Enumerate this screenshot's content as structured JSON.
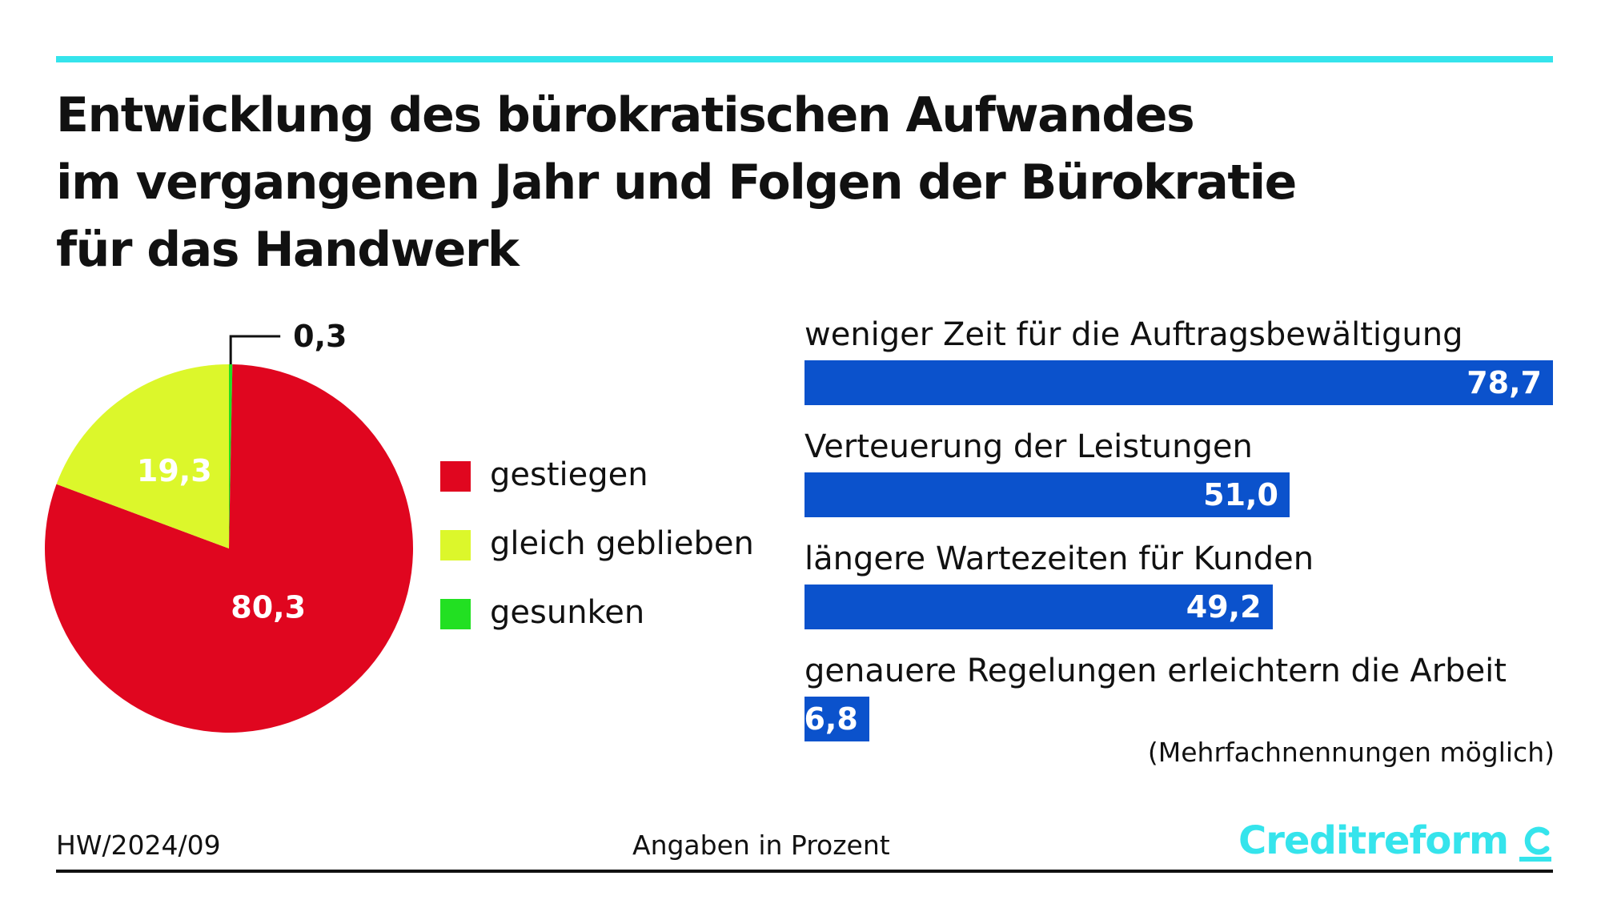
{
  "header": {
    "title_lines": [
      "Entwicklung des bürokratischen Aufwandes",
      "im vergangenen Jahr und Folgen der Bürokratie",
      "für das Handwerk"
    ]
  },
  "colors": {
    "accent_rule": "#35e4ec",
    "gestiegen": "#e0061f",
    "gleich_geblieben": "#dcf72b",
    "gesunken": "#22e022",
    "bars": "#0b52cc",
    "brand": "#35e4ec"
  },
  "chart_data": [
    {
      "type": "pie",
      "slices": [
        {
          "label": "gestiegen",
          "value": 80.3,
          "display": "80,3"
        },
        {
          "label": "gleich geblieben",
          "value": 19.3,
          "display": "19,3"
        },
        {
          "label": "gesunken",
          "value": 0.3,
          "display": "0,3"
        }
      ],
      "legend": [
        "gestiegen",
        "gleich geblieben",
        "gesunken"
      ],
      "legend_position": "right",
      "unit": "Prozent"
    },
    {
      "type": "bar",
      "orientation": "horizontal",
      "categories": [
        "weniger Zeit für die Auftragsbewältigung",
        "Verteuerung der Leistungen",
        "längere Wartezeiten für Kunden",
        "genauere Regelungen erleichtern die Arbeit"
      ],
      "values": [
        78.7,
        51.0,
        49.2,
        6.8
      ],
      "value_labels": [
        "78,7",
        "51,0",
        "49,2",
        "6,8"
      ],
      "xlim": [
        0,
        78.7
      ],
      "grid": false,
      "unit": "Prozent"
    }
  ],
  "note": "(Mehrfachnennungen möglich)",
  "footer": {
    "code": "HW/2024/09",
    "unit_text": "Angaben in Prozent",
    "brand": "Creditreform"
  }
}
